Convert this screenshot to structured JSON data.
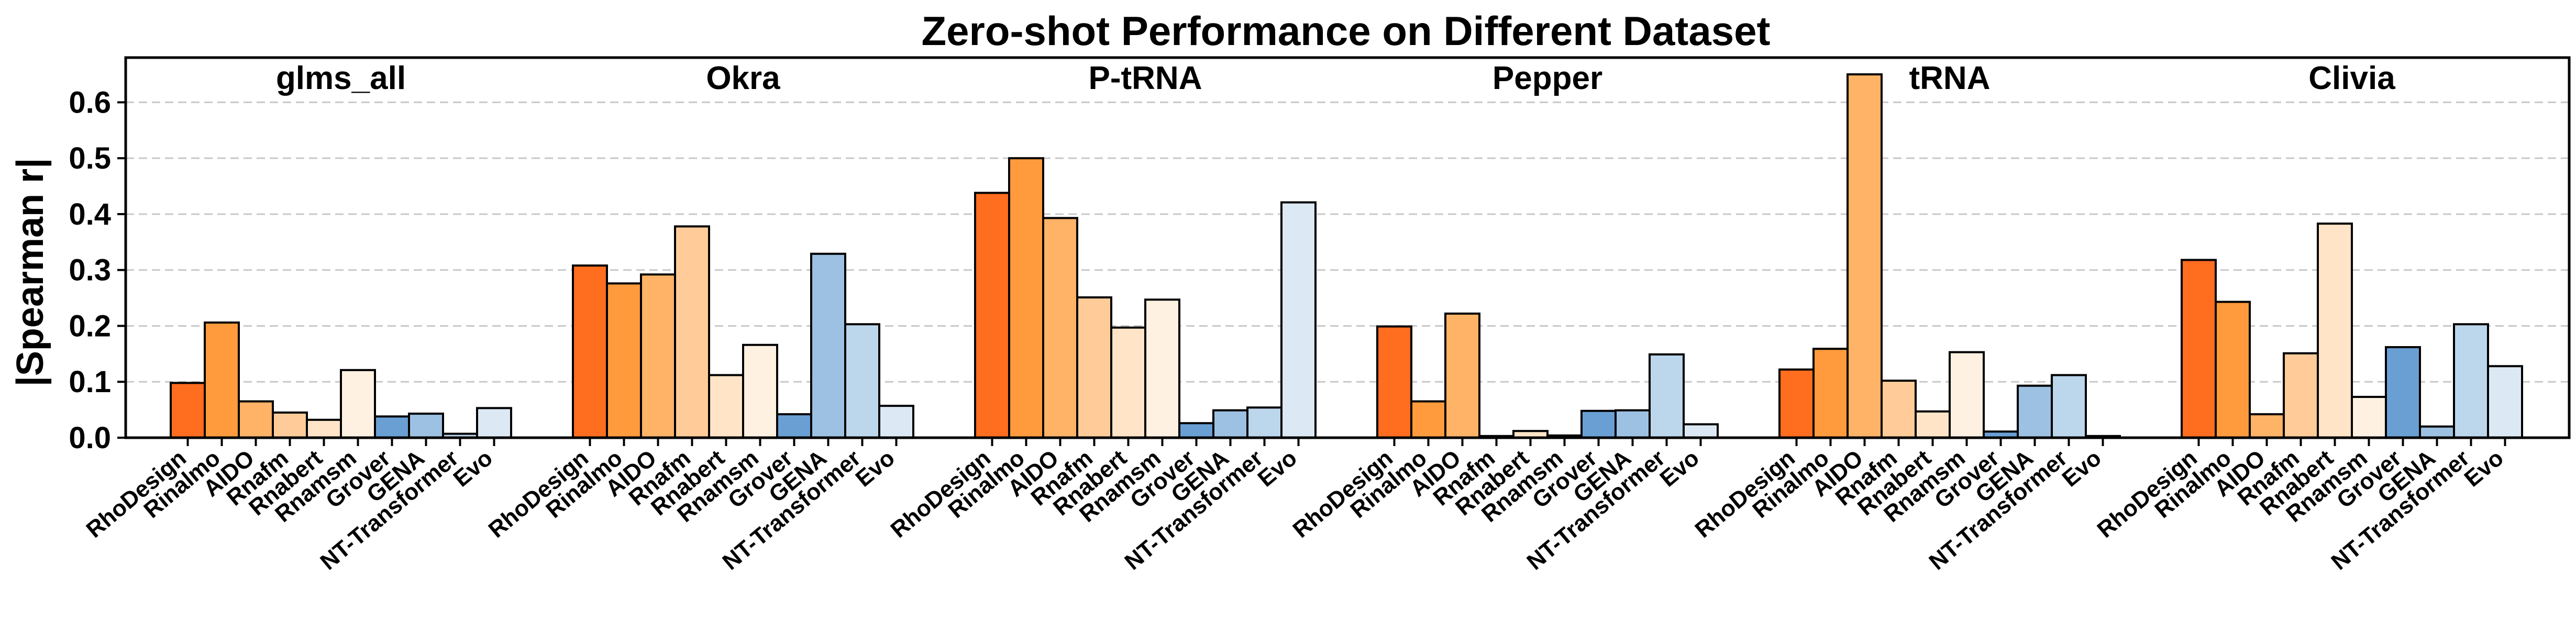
{
  "chart_data": {
    "type": "bar",
    "title": "Zero-shot Performance on Different Dataset",
    "ylabel": "|Spearman r|",
    "xlabel": "",
    "ylim": [
      0,
      0.68
    ],
    "yticks": [
      "0.0",
      "0.1",
      "0.2",
      "0.3",
      "0.4",
      "0.5",
      "0.6"
    ],
    "grid": "horizontal dashed",
    "models": [
      "RhoDesign",
      "Rinalmo",
      "AIDO",
      "Rnafm",
      "Rnabert",
      "Rnamsm",
      "Grover",
      "GENA",
      "NT-Transformer",
      "Evo"
    ],
    "colors": [
      "#ff6d1f",
      "#ff9b3d",
      "#ffb366",
      "#ffcc99",
      "#ffe4c7",
      "#fff1e1",
      "#6a9fd4",
      "#9dc1e2",
      "#bcd6ec",
      "#dce9f5"
    ],
    "groups": [
      {
        "name": "glms_all",
        "values": [
          0.098,
          0.206,
          0.065,
          0.045,
          0.032,
          0.121,
          0.038,
          0.043,
          0.007,
          0.053
        ]
      },
      {
        "name": "Okra",
        "values": [
          0.308,
          0.276,
          0.292,
          0.378,
          0.112,
          0.166,
          0.042,
          0.329,
          0.203,
          0.057
        ]
      },
      {
        "name": "P-tRNA",
        "values": [
          0.438,
          0.5,
          0.393,
          0.251,
          0.197,
          0.247,
          0.026,
          0.049,
          0.054,
          0.421
        ]
      },
      {
        "name": "Pepper",
        "values": [
          0.199,
          0.065,
          0.222,
          0.003,
          0.012,
          0.004,
          0.048,
          0.049,
          0.149,
          0.024
        ]
      },
      {
        "name": "tRNA",
        "values": [
          0.122,
          0.159,
          0.65,
          0.102,
          0.047,
          0.153,
          0.011,
          0.093,
          0.112,
          0.003
        ]
      },
      {
        "name": "Clivia",
        "values": [
          0.318,
          0.243,
          0.042,
          0.151,
          0.383,
          0.073,
          0.162,
          0.02,
          0.203,
          0.128
        ]
      }
    ]
  }
}
